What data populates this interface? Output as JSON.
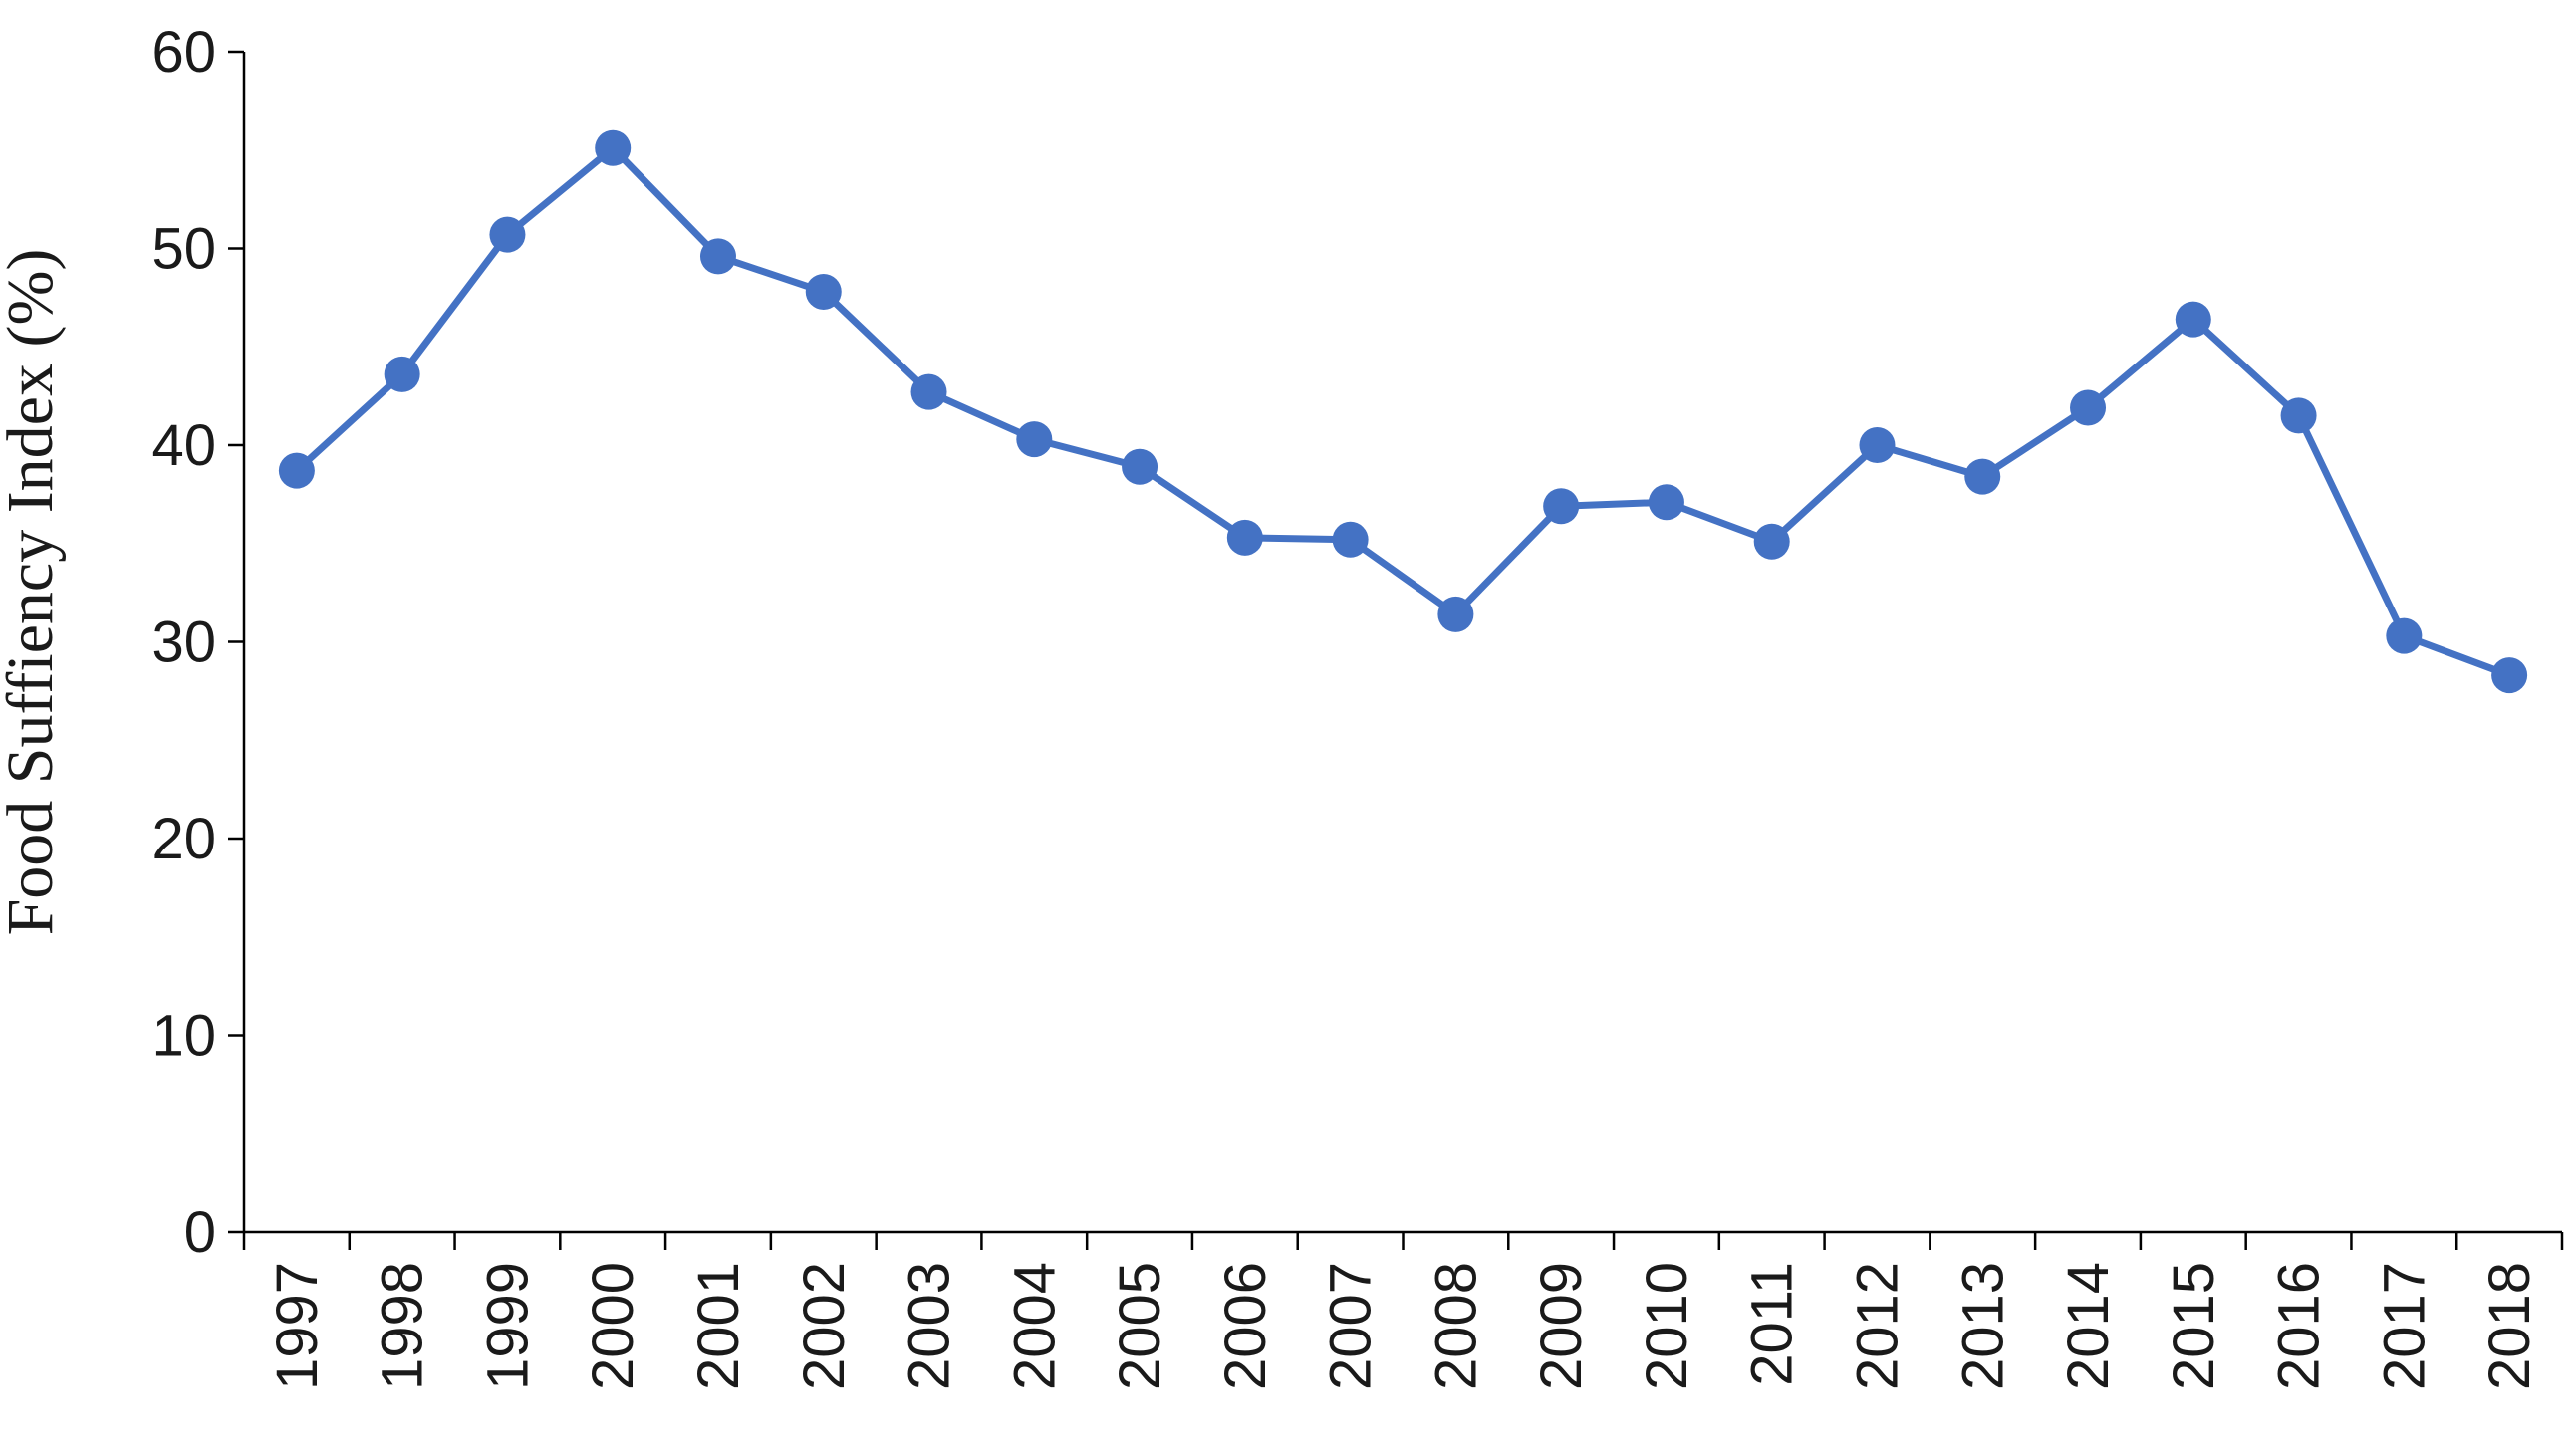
{
  "chart_data": {
    "type": "line",
    "categories": [
      "1997",
      "1998",
      "1999",
      "2000",
      "2001",
      "2002",
      "2003",
      "2004",
      "2005",
      "2006",
      "2007",
      "2008",
      "2009",
      "2010",
      "2011",
      "2012",
      "2013",
      "2014",
      "2015",
      "2016",
      "2017",
      "2018"
    ],
    "series": [
      {
        "values": [
          38.7,
          43.6,
          50.7,
          55.1,
          49.6,
          47.8,
          42.7,
          40.3,
          38.9,
          35.3,
          35.2,
          31.4,
          36.9,
          37.1,
          35.1,
          40.0,
          38.4,
          41.9,
          46.4,
          41.5,
          30.3,
          28.3
        ],
        "color": "#4472C4"
      }
    ],
    "ylabel": "Food Suffiency Index (%)",
    "xlabel": "",
    "ylim": [
      0,
      60
    ],
    "yticks": [
      0,
      10,
      20,
      30,
      40,
      50,
      60
    ],
    "grid": false,
    "legend": "none",
    "colors": {
      "line": "#4472C4",
      "axis": "#000000",
      "text": "#1a1a1a"
    }
  }
}
